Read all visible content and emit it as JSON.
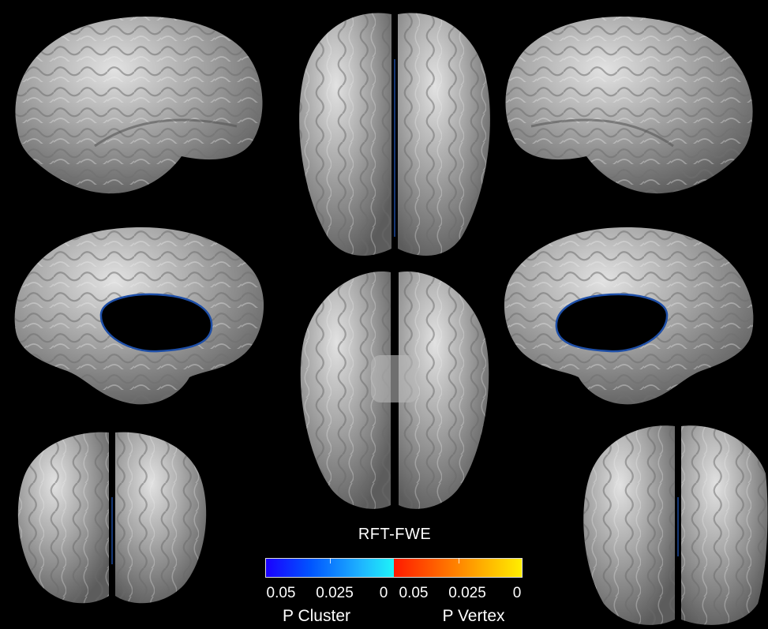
{
  "legend": {
    "title": "RFT-FWE",
    "cluster_ticks": [
      "0.05",
      "0.025",
      "0"
    ],
    "vertex_ticks": [
      "0.05",
      "0.025",
      "0"
    ],
    "cluster_label": "P Cluster",
    "vertex_label": "P Vertex"
  },
  "colors": {
    "background": "#000000",
    "cortex": "#9a9a9a",
    "cluster_low": "#1a00ff",
    "cluster_high": "#1ef4f8",
    "vertex_low": "#ff1a00",
    "vertex_high": "#ffee00"
  }
}
